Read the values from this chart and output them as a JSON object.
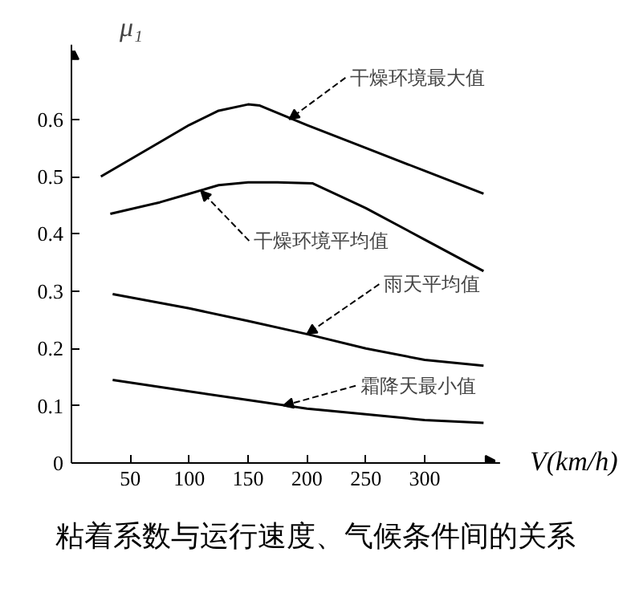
{
  "chart_data": {
    "type": "line",
    "title": "粘着系数与运行速度、气候条件间的关系",
    "xlabel": "V(km/h)",
    "ylabel": "μ₁",
    "xlim": [
      0,
      360
    ],
    "ylim": [
      0,
      0.72
    ],
    "xticks": [
      50,
      100,
      150,
      200,
      250,
      300
    ],
    "yticks": [
      0,
      0.1,
      0.2,
      0.3,
      0.4,
      0.5,
      0.6
    ],
    "grid": false,
    "marker": "none",
    "line_style": "solid",
    "series": [
      {
        "color": "#000000",
        "x": [
          25,
          75,
          100,
          125,
          150,
          160,
          200,
          250,
          300,
          350
        ],
        "values": [
          0.5,
          0.56,
          0.59,
          0.615,
          0.626,
          0.624,
          0.59,
          0.55,
          0.51,
          0.47
        ]
      },
      {
        "color": "#000000",
        "x": [
          33,
          75,
          100,
          125,
          150,
          175,
          205,
          250,
          300,
          350
        ],
        "values": [
          0.435,
          0.455,
          0.47,
          0.485,
          0.49,
          0.49,
          0.488,
          0.445,
          0.39,
          0.335
        ]
      },
      {
        "color": "#000000",
        "x": [
          35,
          100,
          150,
          200,
          250,
          300,
          350
        ],
        "values": [
          0.295,
          0.27,
          0.248,
          0.225,
          0.2,
          0.18,
          0.17
        ]
      },
      {
        "color": "#000000",
        "x": [
          35,
          100,
          150,
          200,
          250,
          300,
          350
        ],
        "values": [
          0.145,
          0.125,
          0.11,
          0.095,
          0.085,
          0.075,
          0.07
        ]
      }
    ],
    "annotations": [
      {
        "text": "干燥环境最大值",
        "x": 185,
        "y": 0.6
      },
      {
        "text": "干燥环境平均值",
        "x": 110,
        "y": 0.475
      },
      {
        "text": "雨天平均值",
        "x": 200,
        "y": 0.225
      },
      {
        "text": "霜降天最小值",
        "x": 180,
        "y": 0.1
      }
    ]
  }
}
